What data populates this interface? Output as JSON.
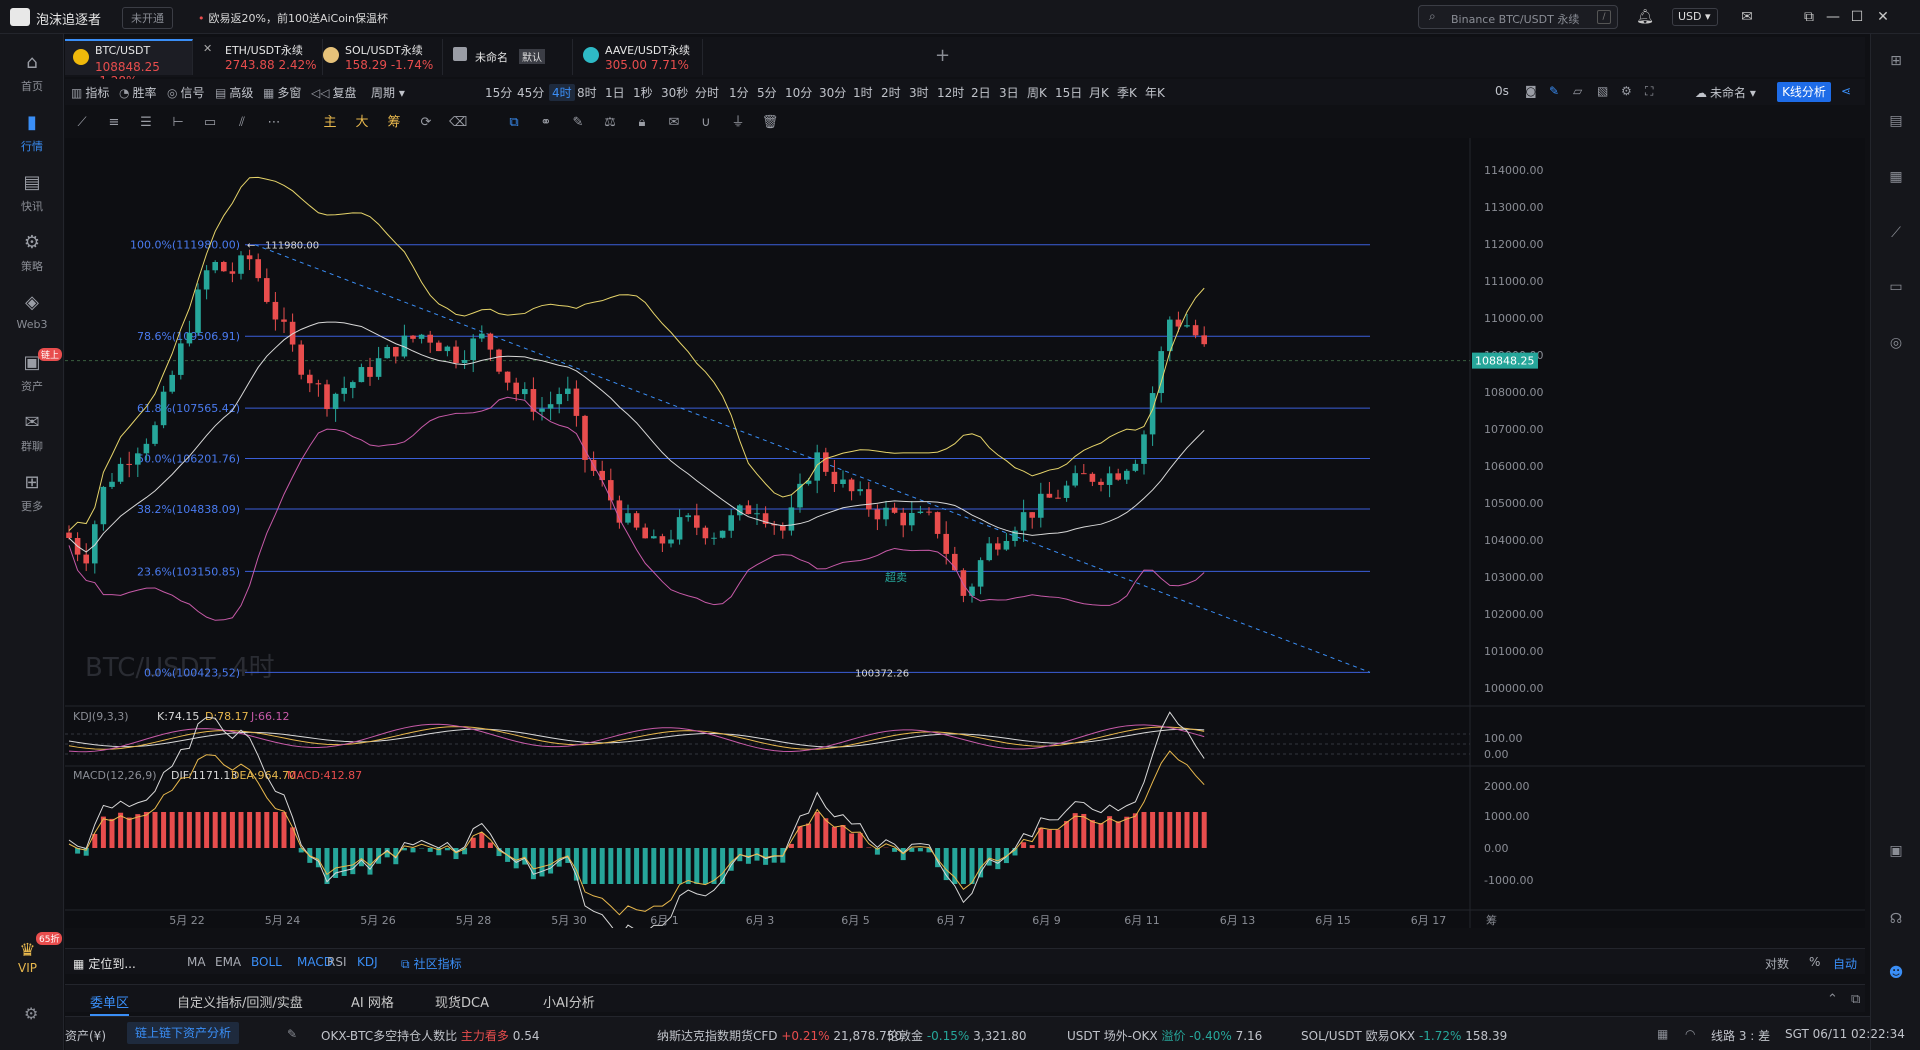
{
  "app": {
    "name": "泡沫追逐者",
    "market_status": "未开通",
    "marquee": "欧易返20%，前100送AiCoin保温杯",
    "search_placeholder": "Binance BTC/USDT 永续",
    "search_key": "/",
    "currency": "USD"
  },
  "nav": [
    {
      "label": "首页",
      "icon": "home-icon"
    },
    {
      "label": "行情",
      "icon": "market-icon",
      "active": true
    },
    {
      "label": "快讯",
      "icon": "news-icon"
    },
    {
      "label": "策略",
      "icon": "strategy-icon"
    },
    {
      "label": "Web3",
      "icon": "web3-icon"
    },
    {
      "label": "资产",
      "icon": "wallet-icon",
      "badge": "链上"
    },
    {
      "label": "群聊",
      "icon": "chat-icon"
    },
    {
      "label": "更多",
      "icon": "more-icon"
    }
  ],
  "vip": {
    "label": "VIP",
    "badge": "65折"
  },
  "tabs": [
    {
      "symbol": "BTC/USDT",
      "price": "108848.25",
      "change": "-1.28%",
      "color": "#f0b90b"
    },
    {
      "symbol": "ETH/USDT永续",
      "price": "2743.88",
      "change": "2.42%",
      "color": "#ffffff"
    },
    {
      "symbol": "SOL/USDT永续",
      "price": "158.29",
      "change": "-1.74%",
      "color": "#e6c27a"
    },
    {
      "symbol": "未命名",
      "price": "",
      "change": "",
      "tag": "默认",
      "color": "#9a9da5"
    },
    {
      "symbol": "AAVE/USDT永续",
      "price": "305.00",
      "change": "7.71%",
      "color": "#2ebac6"
    }
  ],
  "toolbar": {
    "items": [
      "指标",
      "胜率",
      "信号",
      "高级",
      "多窗",
      "复盘",
      "周期"
    ],
    "intervals": [
      "15分",
      "45分",
      "4时",
      "8时",
      "1日",
      "1秒",
      "30秒",
      "分时",
      "1分",
      "5分",
      "10分",
      "30分",
      "1时",
      "2时",
      "3时",
      "12时",
      "2日",
      "3日",
      "周K",
      "15日",
      "月K",
      "季K",
      "年K"
    ],
    "active_interval": "4时",
    "countdown": "0s",
    "layout_name": "未命名",
    "kline_button": "K线分析"
  },
  "draw_tools": [
    "主",
    "大",
    "筹"
  ],
  "chart": {
    "watermark": "BTC/USDT, 4时",
    "price_axis": [
      "114000.00",
      "113000.00",
      "112000.00",
      "111000.00",
      "110000.00",
      "109000.00",
      "108000.00",
      "107000.00",
      "106000.00",
      "105000.00",
      "104000.00",
      "103000.00",
      "102000.00",
      "101000.00",
      "100000.00"
    ],
    "current_price": "108848.25",
    "fib": [
      {
        "label": "100.0%(111980.00)",
        "price": 111980.0
      },
      {
        "label": "78.6%(109506.91)",
        "price": 109506.91
      },
      {
        "label": "61.8%(107565.42)",
        "price": 107565.42
      },
      {
        "label": "50.0%(106201.76)",
        "price": 106201.76
      },
      {
        "label": "38.2%(104838.09)",
        "price": 104838.09
      },
      {
        "label": "23.6%(103150.85)",
        "price": 103150.85
      },
      {
        "label": "0.0%(100423.52)",
        "price": 100423.52
      }
    ],
    "high_label": "111980.00",
    "low_label": "100372.26",
    "oversold_label": "超卖",
    "kdj": {
      "title": "KDJ(9,3,3)",
      "k": "K:74.15",
      "d": "D:78.17",
      "j": "J:66.12",
      "axis": [
        "100.00",
        "0.00"
      ]
    },
    "macd": {
      "title": "MACD(12,26,9)",
      "dif": "DIF:1171.13",
      "dea": "DEA:964.70",
      "macd": "MACD:412.87",
      "axis": [
        "2000.00",
        "1000.00",
        "0.00",
        "-1000.00"
      ]
    },
    "dates": [
      "5月 22",
      "5月 24",
      "5月 26",
      "5月 28",
      "5月 30",
      "6月 1",
      "6月 3",
      "6月 5",
      "6月 7",
      "6月 9",
      "6月 11",
      "6月 13",
      "6月 15",
      "6月 17"
    ],
    "date_axis_suffix": "筹"
  },
  "chart_data": {
    "type": "candlestick",
    "title": "BTC/USDT, 4时",
    "ylim": [
      100000,
      114000
    ],
    "x": [
      "5月 22",
      "5月 24",
      "5月 26",
      "5月 28",
      "5月 30",
      "6月 1",
      "6月 3",
      "6月 5",
      "6月 7",
      "6月 9",
      "6月 11"
    ],
    "close": [
      110800,
      108600,
      109200,
      108200,
      105600,
      104000,
      104800,
      104600,
      104300,
      105900,
      108848.25
    ],
    "fib_levels": [
      111980.0,
      109506.91,
      107565.42,
      106201.76,
      104838.09,
      103150.85,
      100423.52
    ],
    "indicators": [
      "BOLL",
      "KDJ(9,3,3)",
      "MACD(12,26,9)"
    ]
  },
  "bottom": {
    "locate": "定位到...",
    "indicators": [
      "MA",
      "EMA",
      "BOLL",
      "MACD",
      "RSI",
      "KDJ"
    ],
    "community": "社区指标",
    "scale": [
      "对数",
      "%",
      "自动"
    ]
  },
  "panel_tabs": [
    "委单区",
    "自定义指标/回测/实盘",
    "AI 网格",
    "现货DCA",
    "小AI分析"
  ],
  "status": {
    "asset_label": "资产(¥)",
    "asset_btn": "链上链下资产分析",
    "tickers": [
      {
        "name": "OKX-BTC多空持仓人数比",
        "tag": "主力看多",
        "value": "0.54"
      },
      {
        "name": "纳斯达克指数期货CFD",
        "change": "+0.21%",
        "value": "21,878.750"
      },
      {
        "name": "伦敦金",
        "change": "-0.15%",
        "value": "3,321.80"
      },
      {
        "name": "USDT 场外-OKX",
        "change": "溢价 -0.40%",
        "value": "7.16"
      },
      {
        "name": "SOL/USDT 欧易OKX",
        "change": "-1.72%",
        "value": "158.39"
      }
    ],
    "line": "线路 3 : 差",
    "clock": "SGT  06/11 02:22:34"
  }
}
